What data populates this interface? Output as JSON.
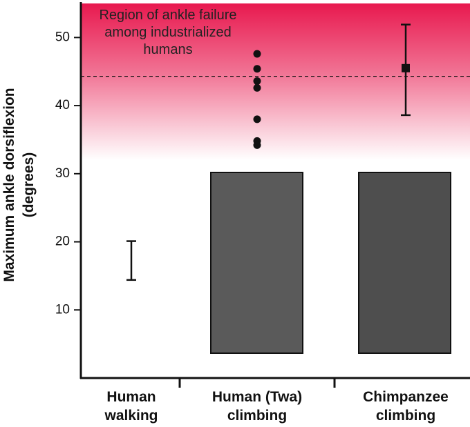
{
  "chart_data": {
    "type": "dot-range",
    "ylabel": "Maximum ankle dorsiflexion (degrees)",
    "annotation": "Region of ankle failure among industrialized humans",
    "categories": [
      "Human walking",
      "Human (Twa) climbing",
      "Chimpanzee climbing"
    ],
    "walking_range": [
      14.4,
      20.1
    ],
    "twa_points": [
      47.6,
      45.4,
      43.6,
      42.6,
      38.0,
      34.8,
      34.2
    ],
    "chimp_mean": 45.5,
    "chimp_range": [
      38.6,
      51.9
    ],
    "failure_threshold": 44.3,
    "failure_region_min": 32,
    "region_color": "#e8194f",
    "ylim": [
      0,
      55
    ],
    "yticks": [
      10,
      20,
      30,
      40,
      50
    ]
  }
}
